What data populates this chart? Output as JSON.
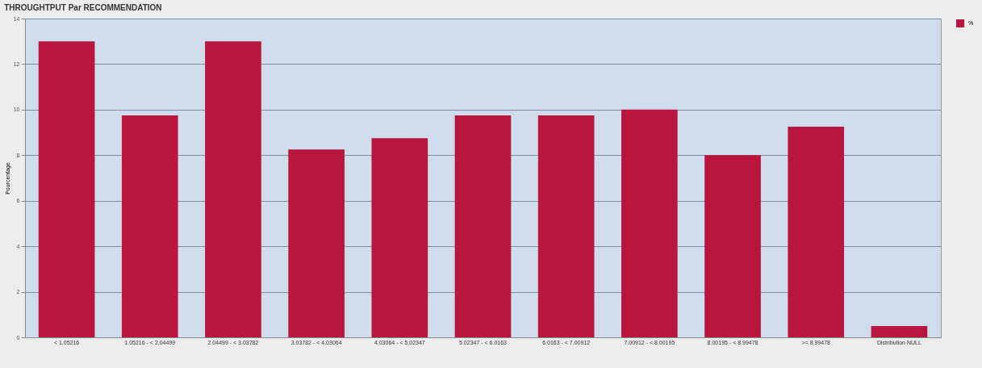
{
  "chart_data": {
    "type": "bar",
    "title": "THROUGHTPUT Par RECOMMENDATION",
    "ylabel": "Pourcentage",
    "categories": [
      "< 1.05216",
      "1.05216 - < 2.04499",
      "2.04499 - < 3.03782",
      "3.03782 - < 4.03064",
      "4.03064 - < 5.02347",
      "5.02347 - < 6.0163",
      "6.0163 - < 7.00912",
      "7.00912 - < 8.00195",
      "8.00195 - < 8.99478",
      ">= 8.99478",
      "Distribution NULL"
    ],
    "series": [
      {
        "name": "%",
        "color": "#b8153f",
        "values": [
          13,
          9.75,
          13,
          8.25,
          8.75,
          9.75,
          9.75,
          10,
          8,
          9.25,
          0.5
        ]
      }
    ],
    "ylim": [
      0,
      14
    ],
    "yticks": [
      0,
      2,
      4,
      6,
      8,
      10,
      12,
      14
    ],
    "grid": "y",
    "legend": "right"
  }
}
